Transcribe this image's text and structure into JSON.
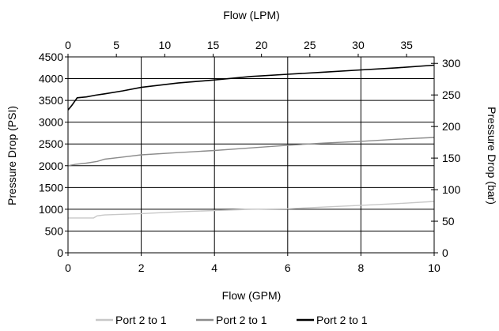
{
  "chart_data": {
    "type": "line",
    "title": "",
    "xlabel": "Flow (GPM)",
    "x2label": "Flow (LPM)",
    "ylabel": "Pressure Drop (PSI)",
    "y2label": "Pressure Drop (bar)",
    "xlim": [
      0,
      10
    ],
    "ylim": [
      0,
      4500
    ],
    "x2lim": [
      0,
      37.85
    ],
    "y2lim": [
      0,
      310.3
    ],
    "x_ticks": [
      "0",
      "2",
      "4",
      "6",
      "8",
      "10"
    ],
    "y_ticks": [
      "0",
      "500",
      "1000",
      "1500",
      "2000",
      "2500",
      "3000",
      "3500",
      "4000",
      "4500"
    ],
    "x2_ticks": [
      "0",
      "5",
      "10",
      "15",
      "20",
      "25",
      "30",
      "35"
    ],
    "y2_ticks": [
      "0",
      "50",
      "100",
      "150",
      "200",
      "250",
      "300"
    ],
    "grid": true,
    "legend_position": "bottom",
    "series": [
      {
        "name": "Port 2 to 1",
        "color": "#c8c8c8",
        "x": [
          0,
          0.3,
          0.7,
          0.8,
          1,
          2,
          3,
          4,
          5,
          6,
          7,
          8,
          9,
          10
        ],
        "y": [
          800,
          800,
          800,
          850,
          870,
          900,
          940,
          970,
          1000,
          1010,
          1050,
          1090,
          1130,
          1180
        ]
      },
      {
        "name": "Port 2 to 1",
        "color": "#8c8c8c",
        "x": [
          0,
          0.2,
          0.5,
          0.8,
          1,
          1.5,
          2,
          3,
          4,
          5,
          6,
          7,
          8,
          9,
          10
        ],
        "y": [
          2000,
          2030,
          2060,
          2100,
          2150,
          2200,
          2250,
          2300,
          2350,
          2410,
          2470,
          2520,
          2560,
          2610,
          2650
        ]
      },
      {
        "name": "Port 2 to 1",
        "color": "#000000",
        "x": [
          0,
          0.1,
          0.25,
          0.5,
          0.75,
          1,
          1.5,
          2,
          3,
          4,
          5,
          6,
          7,
          8,
          9,
          10
        ],
        "y": [
          3280,
          3380,
          3560,
          3580,
          3620,
          3650,
          3720,
          3800,
          3900,
          3970,
          4050,
          4100,
          4150,
          4200,
          4250,
          4310
        ]
      }
    ]
  }
}
